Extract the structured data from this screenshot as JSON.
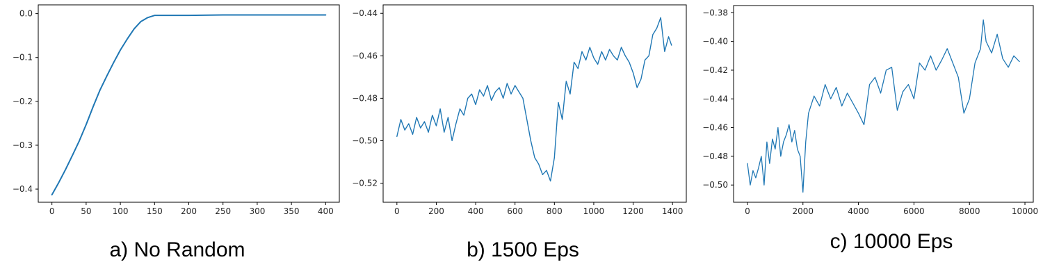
{
  "chart_data": [
    {
      "type": "line",
      "caption": "a) No Random",
      "xlim": [
        -20,
        420
      ],
      "ylim": [
        -0.43,
        0.02
      ],
      "xticks": [
        0,
        50,
        100,
        150,
        200,
        250,
        300,
        350,
        400
      ],
      "xtick_labels": [
        "0",
        "50",
        "100",
        "150",
        "200",
        "250",
        "300",
        "350",
        "400"
      ],
      "yticks": [
        0.0,
        -0.1,
        -0.2,
        -0.3,
        -0.4
      ],
      "ytick_labels": [
        "0.0",
        "−0.1",
        "−0.2",
        "−0.3",
        "−0.4"
      ],
      "grid": false,
      "series": [
        {
          "color": "#1f77b4",
          "x": [
            0,
            10,
            20,
            30,
            40,
            50,
            60,
            70,
            80,
            90,
            100,
            110,
            120,
            130,
            140,
            150,
            175,
            200,
            250,
            300,
            350,
            400
          ],
          "y": [
            -0.413,
            -0.385,
            -0.355,
            -0.323,
            -0.29,
            -0.253,
            -0.213,
            -0.175,
            -0.143,
            -0.112,
            -0.083,
            -0.058,
            -0.035,
            -0.018,
            -0.009,
            -0.004,
            -0.004,
            -0.004,
            -0.003,
            -0.003,
            -0.003,
            -0.003
          ]
        }
      ]
    },
    {
      "type": "line",
      "caption": "b) 1500 Eps",
      "xlim": [
        -70,
        1470
      ],
      "ylim": [
        -0.529,
        -0.436
      ],
      "xticks": [
        0,
        200,
        400,
        600,
        800,
        1000,
        1200,
        1400
      ],
      "xtick_labels": [
        "0",
        "200",
        "400",
        "600",
        "800",
        "1000",
        "1200",
        "1400"
      ],
      "yticks": [
        -0.44,
        -0.46,
        -0.48,
        -0.5,
        -0.52
      ],
      "ytick_labels": [
        "−0.44",
        "−0.46",
        "−0.48",
        "−0.50",
        "−0.52"
      ],
      "grid": false,
      "series": [
        {
          "color": "#1f77b4",
          "x": [
            0,
            20,
            40,
            60,
            80,
            100,
            120,
            140,
            160,
            180,
            200,
            220,
            240,
            260,
            280,
            300,
            320,
            340,
            360,
            380,
            400,
            420,
            440,
            460,
            480,
            500,
            520,
            540,
            560,
            580,
            600,
            620,
            640,
            660,
            680,
            700,
            720,
            740,
            760,
            780,
            800,
            820,
            840,
            860,
            880,
            900,
            920,
            940,
            960,
            980,
            1000,
            1020,
            1040,
            1060,
            1080,
            1100,
            1120,
            1140,
            1160,
            1180,
            1200,
            1220,
            1240,
            1260,
            1280,
            1300,
            1320,
            1340,
            1360,
            1380,
            1395
          ],
          "y": [
            -0.498,
            -0.49,
            -0.495,
            -0.492,
            -0.497,
            -0.489,
            -0.494,
            -0.491,
            -0.496,
            -0.488,
            -0.493,
            -0.485,
            -0.496,
            -0.489,
            -0.5,
            -0.492,
            -0.485,
            -0.488,
            -0.48,
            -0.478,
            -0.483,
            -0.476,
            -0.479,
            -0.474,
            -0.481,
            -0.477,
            -0.475,
            -0.48,
            -0.473,
            -0.478,
            -0.474,
            -0.477,
            -0.48,
            -0.49,
            -0.5,
            -0.508,
            -0.511,
            -0.516,
            -0.514,
            -0.519,
            -0.508,
            -0.482,
            -0.49,
            -0.472,
            -0.478,
            -0.463,
            -0.466,
            -0.458,
            -0.462,
            -0.456,
            -0.461,
            -0.464,
            -0.458,
            -0.462,
            -0.457,
            -0.46,
            -0.462,
            -0.456,
            -0.46,
            -0.463,
            -0.468,
            -0.475,
            -0.471,
            -0.462,
            -0.46,
            -0.45,
            -0.447,
            -0.442,
            -0.458,
            -0.451,
            -0.455
          ]
        }
      ]
    },
    {
      "type": "line",
      "caption": "c) 10000 Eps",
      "xlim": [
        -500,
        10300
      ],
      "ylim": [
        -0.512,
        -0.375
      ],
      "xticks": [
        0,
        2000,
        4000,
        6000,
        8000,
        10000
      ],
      "xtick_labels": [
        "0",
        "2000",
        "4000",
        "6000",
        "8000",
        "10000"
      ],
      "yticks": [
        -0.38,
        -0.4,
        -0.42,
        -0.44,
        -0.46,
        -0.48,
        -0.5
      ],
      "ytick_labels": [
        "−0.38",
        "−0.40",
        "−0.42",
        "−0.44",
        "−0.46",
        "−0.48",
        "−0.50"
      ],
      "grid": false,
      "series": [
        {
          "color": "#1f77b4",
          "x": [
            0,
            100,
            200,
            300,
            400,
            500,
            600,
            700,
            800,
            900,
            1000,
            1100,
            1200,
            1300,
            1400,
            1500,
            1600,
            1700,
            1800,
            1900,
            2000,
            2100,
            2200,
            2400,
            2600,
            2800,
            3000,
            3200,
            3400,
            3600,
            3800,
            4000,
            4200,
            4400,
            4600,
            4800,
            5000,
            5200,
            5400,
            5600,
            5800,
            6000,
            6200,
            6400,
            6600,
            6800,
            7000,
            7200,
            7400,
            7600,
            7800,
            8000,
            8200,
            8400,
            8500,
            8600,
            8800,
            9000,
            9200,
            9400,
            9600,
            9800
          ],
          "y": [
            -0.485,
            -0.5,
            -0.49,
            -0.495,
            -0.488,
            -0.48,
            -0.5,
            -0.47,
            -0.485,
            -0.468,
            -0.475,
            -0.46,
            -0.48,
            -0.47,
            -0.465,
            -0.458,
            -0.47,
            -0.462,
            -0.475,
            -0.48,
            -0.505,
            -0.47,
            -0.45,
            -0.438,
            -0.445,
            -0.43,
            -0.44,
            -0.432,
            -0.445,
            -0.436,
            -0.443,
            -0.45,
            -0.458,
            -0.43,
            -0.425,
            -0.436,
            -0.42,
            -0.418,
            -0.448,
            -0.435,
            -0.43,
            -0.44,
            -0.415,
            -0.42,
            -0.41,
            -0.42,
            -0.413,
            -0.405,
            -0.415,
            -0.425,
            -0.45,
            -0.44,
            -0.415,
            -0.405,
            -0.385,
            -0.4,
            -0.408,
            -0.395,
            -0.412,
            -0.418,
            -0.41,
            -0.414
          ]
        }
      ]
    }
  ]
}
